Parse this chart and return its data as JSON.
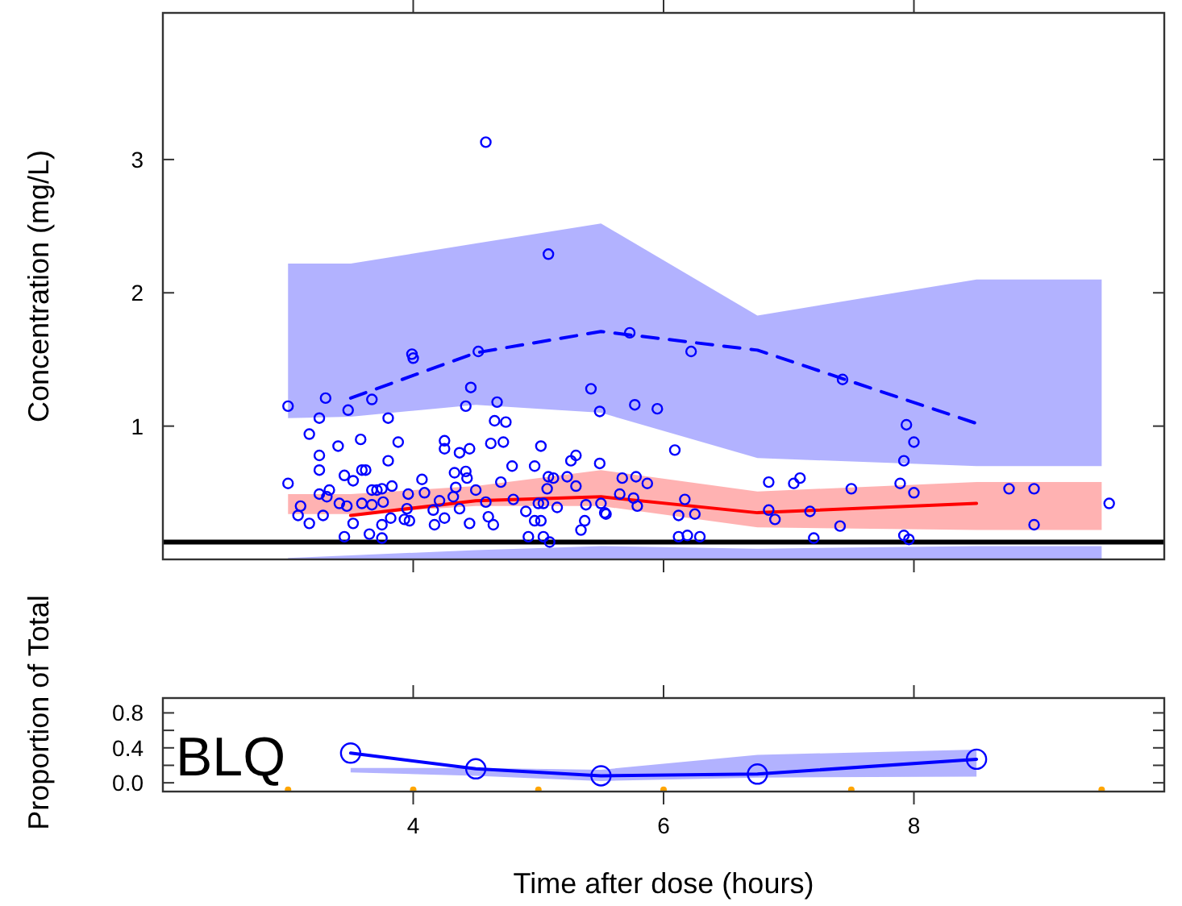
{
  "chart_data": [
    {
      "type": "scatter",
      "ylabel": "Concentration (mg/L)",
      "xlim": [
        2,
        10
      ],
      "ylim": [
        0,
        4.1
      ],
      "xticks": [
        4,
        6,
        8
      ],
      "yticks": [
        1,
        2,
        3
      ],
      "tick_labels": "y",
      "ref_lines": [
        {
          "axis": "y",
          "value": 0.13,
          "color": "#000000"
        }
      ],
      "series": [
        {
          "type": "line",
          "color": "#0000ff",
          "line_style": "dashed",
          "x": [
            3,
            3.5,
            4.5,
            5.5,
            6.75,
            8.5,
            9.5
          ],
          "values": [
            null,
            1.21,
            1.55,
            1.71,
            1.57,
            1.02,
            null
          ],
          "lower": [
            1.06,
            1.07,
            1.16,
            1.1,
            0.76,
            0.7,
            0.7
          ],
          "upper": [
            2.22,
            2.22,
            2.37,
            2.52,
            1.83,
            2.1,
            2.1
          ]
        },
        {
          "type": "line",
          "color": "#ff0000",
          "line_style": "solid",
          "x": [
            3,
            3.5,
            4.5,
            5.5,
            6.75,
            8.5,
            9.5
          ],
          "values": [
            null,
            0.33,
            0.44,
            0.47,
            0.35,
            0.42,
            null
          ],
          "lower": [
            0.34,
            0.34,
            0.4,
            0.4,
            0.24,
            0.22,
            0.22
          ],
          "upper": [
            0.49,
            0.49,
            0.55,
            0.67,
            0.51,
            0.58,
            0.58
          ]
        },
        {
          "type": "area",
          "color": "#0000ff",
          "x": [
            3,
            3.5,
            4.5,
            5.5,
            6.75,
            8.5,
            9.5
          ],
          "values": [
            0.01,
            0.03,
            0.07,
            0.1,
            0.08,
            0.1,
            0.1
          ]
        },
        {
          "color": "#0000ff",
          "marker": "circle",
          "x": [
            4.58,
            5.08,
            5.73,
            4.52,
            3.99,
            4.0,
            3.0,
            3.3,
            3.48,
            3.67,
            3.25,
            3.17,
            3.8,
            4.46,
            4.42,
            4.67,
            4.65,
            4.74,
            5.42,
            5.49,
            5.77,
            5.95,
            3.4,
            3.25,
            3.58,
            3.88,
            4.25,
            4.25,
            4.37,
            4.45,
            4.62,
            4.72,
            5.02,
            3.25,
            3.8,
            3.59,
            3.62,
            3.45,
            3.52,
            3.0,
            3.33,
            3.25,
            3.31,
            3.1,
            3.08,
            3.17,
            3.28,
            3.41,
            3.47,
            3.45,
            3.52,
            3.59,
            3.65,
            3.67,
            3.71,
            3.75,
            3.83,
            3.67,
            3.76,
            3.75,
            3.75,
            3.82,
            3.95,
            3.96,
            4.07,
            4.09,
            3.93,
            3.97,
            4.16,
            4.17,
            4.21,
            4.25,
            4.33,
            4.34,
            4.42,
            4.43,
            4.32,
            4.37,
            4.45,
            4.5,
            4.58,
            4.6,
            4.64,
            4.7,
            4.79,
            4.8,
            4.9,
            4.92,
            4.97,
            5.02,
            4.97,
            5.07,
            5.08,
            5.12,
            5.0,
            5.04,
            5.15,
            5.04,
            5.09,
            5.23,
            5.26,
            5.3,
            5.3,
            5.37,
            5.34,
            5.38,
            5.5,
            5.53,
            5.54,
            5.49,
            5.67,
            5.78,
            5.87,
            5.65,
            5.76,
            5.79,
            6.09,
            6.22,
            7.43,
            7.94,
            8.0,
            7.92,
            6.84,
            7.04,
            7.09,
            7.89,
            8.0,
            7.5,
            8.76,
            8.96,
            9.56,
            8.96,
            6.17,
            6.12,
            6.25,
            6.12,
            6.19,
            6.29,
            6.84,
            6.89,
            7.17,
            7.41,
            7.2,
            7.92,
            7.96
          ],
          "values": [
            3.13,
            2.29,
            1.7,
            1.56,
            1.54,
            1.51,
            1.15,
            1.21,
            1.12,
            1.2,
            1.06,
            0.94,
            1.06,
            1.29,
            1.15,
            1.18,
            1.04,
            1.03,
            1.28,
            1.11,
            1.16,
            1.13,
            0.85,
            0.78,
            0.9,
            0.88,
            0.89,
            0.83,
            0.8,
            0.83,
            0.87,
            0.88,
            0.85,
            0.67,
            0.74,
            0.67,
            0.67,
            0.63,
            0.59,
            0.57,
            0.52,
            0.49,
            0.47,
            0.4,
            0.33,
            0.27,
            0.33,
            0.42,
            0.4,
            0.17,
            0.27,
            0.42,
            0.19,
            0.52,
            0.52,
            0.53,
            0.55,
            0.41,
            0.43,
            0.26,
            0.16,
            0.31,
            0.38,
            0.49,
            0.6,
            0.5,
            0.3,
            0.29,
            0.37,
            0.26,
            0.44,
            0.31,
            0.65,
            0.54,
            0.66,
            0.61,
            0.47,
            0.38,
            0.27,
            0.52,
            0.43,
            0.32,
            0.26,
            0.58,
            0.7,
            0.45,
            0.36,
            0.17,
            0.29,
            0.29,
            0.7,
            0.53,
            0.62,
            0.61,
            0.42,
            0.42,
            0.39,
            0.17,
            0.13,
            0.62,
            0.74,
            0.78,
            0.55,
            0.29,
            0.22,
            0.41,
            0.42,
            0.35,
            0.34,
            0.72,
            0.61,
            0.62,
            0.57,
            0.49,
            0.46,
            0.4,
            0.82,
            1.56,
            1.35,
            1.01,
            0.88,
            0.74,
            0.58,
            0.57,
            0.61,
            0.57,
            0.5,
            0.53,
            0.53,
            0.53,
            0.42,
            0.26,
            0.45,
            0.33,
            0.34,
            0.17,
            0.18,
            0.17,
            0.37,
            0.3,
            0.36,
            0.25,
            0.16,
            0.18,
            0.15
          ]
        }
      ]
    },
    {
      "type": "line",
      "ylabel": "Proportion of Total",
      "xlabel": "Time after dose (hours)",
      "xlim": [
        2,
        10
      ],
      "ylim": [
        -0.1,
        0.97
      ],
      "xticks": [
        4,
        6,
        8
      ],
      "yticks": [
        {
          "value": 0,
          "label": "0.0"
        },
        {
          "value": 0.2,
          "label": null
        },
        {
          "value": 0.4,
          "label": "0.4"
        },
        {
          "value": 0.6,
          "label": null
        },
        {
          "value": 0.8,
          "label": "0.8"
        }
      ],
      "annotations": [
        "BLQ"
      ],
      "series": [
        {
          "color": "#0000ff",
          "line_style": "solid",
          "marker": "circle",
          "x": [
            3.5,
            4.5,
            5.5,
            6.75,
            8.5
          ],
          "values": [
            0.34,
            0.16,
            0.08,
            0.1,
            0.27
          ],
          "lower": [
            0.12,
            0.08,
            0.02,
            0.06,
            0.07
          ],
          "upper": [
            0.17,
            0.17,
            0.15,
            0.32,
            0.38
          ]
        },
        {
          "type": "scatter",
          "color": "#ffa500",
          "marker": "circle",
          "x": [
            3,
            4,
            5,
            6,
            7.5,
            9.5
          ],
          "values": [
            -0.08,
            -0.08,
            -0.08,
            -0.08,
            -0.08,
            -0.08
          ]
        }
      ]
    }
  ]
}
